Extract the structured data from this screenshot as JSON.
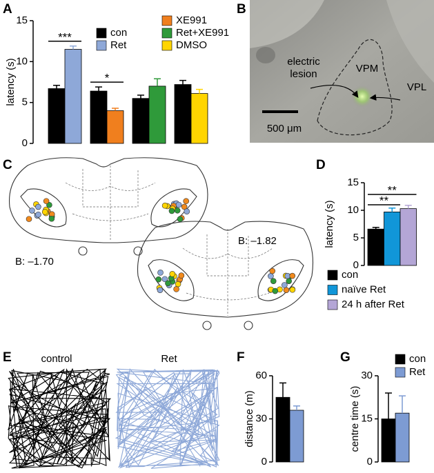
{
  "panel_labels": [
    "A",
    "B",
    "C",
    "D",
    "E",
    "F",
    "G"
  ],
  "image_b": {
    "lesion_label": [
      "electric",
      "lesion"
    ],
    "regions": [
      "VPM",
      "VPL"
    ],
    "scale_bar": "500 μm"
  },
  "atlas_c": {
    "sections": [
      "B: –1.70",
      "B: –1.82"
    ]
  },
  "tracks_e": {
    "titles": [
      "control",
      "Ret"
    ]
  },
  "chart_data": [
    {
      "type": "bar",
      "ylabel": "latency (s)",
      "ylim": [
        0,
        15
      ],
      "yticks": [
        0,
        5,
        10,
        15
      ],
      "categories": [
        null,
        null,
        null,
        null
      ],
      "series": [
        {
          "name": "con",
          "color": "#000000",
          "values": [
            6.7,
            6.4,
            5.5,
            7.2
          ],
          "errors": [
            0.4,
            0.5,
            0.4,
            0.5
          ]
        },
        {
          "name": "Ret",
          "color": "#8ea8d8",
          "values": [
            11.5,
            null,
            null,
            null
          ],
          "errors": [
            0.4,
            null,
            null,
            null
          ]
        },
        {
          "name": "XE991",
          "color": "#f07f1e",
          "values": [
            null,
            4.0,
            null,
            null
          ],
          "errors": [
            null,
            0.3,
            null,
            null
          ]
        },
        {
          "name": "Ret+XE991",
          "color": "#2f9a3a",
          "values": [
            null,
            null,
            7.0,
            null
          ],
          "errors": [
            null,
            null,
            0.9,
            null
          ]
        },
        {
          "name": "DMSO",
          "color": "#ffd500",
          "values": [
            null,
            null,
            null,
            6.1
          ],
          "errors": [
            null,
            null,
            null,
            0.5
          ]
        }
      ],
      "annotations": [
        "***",
        "*"
      ],
      "legend": true
    },
    {
      "type": "bar",
      "ylabel": "latency (s)",
      "ylim": [
        0,
        15
      ],
      "yticks": [
        0,
        5,
        10,
        15
      ],
      "categories": [
        null
      ],
      "series": [
        {
          "name": "con",
          "color": "#000000",
          "values": [
            6.6
          ],
          "errors": [
            0.3
          ]
        },
        {
          "name": "naïve Ret",
          "color": "#1196d8",
          "values": [
            9.7
          ],
          "errors": [
            0.7
          ]
        },
        {
          "name": "24 h after Ret",
          "color": "#b4a6d6",
          "values": [
            10.3
          ],
          "errors": [
            0.6
          ]
        }
      ],
      "annotations": [
        "**",
        "**"
      ],
      "legend": true
    },
    {
      "type": "bar",
      "ylabel": "distance (m)",
      "ylim": [
        0,
        60
      ],
      "yticks": [
        0,
        30,
        60
      ],
      "categories": [
        null
      ],
      "series": [
        {
          "name": "con",
          "color": "#000000",
          "values": [
            45
          ],
          "errors": [
            10
          ]
        },
        {
          "name": "Ret",
          "color": "#7d9bd3",
          "values": [
            36
          ],
          "errors": [
            3
          ]
        }
      ],
      "legend": false
    },
    {
      "type": "bar",
      "ylabel": "centre time (s)",
      "ylim": [
        0,
        30
      ],
      "yticks": [
        0,
        15,
        30
      ],
      "categories": [
        null
      ],
      "series": [
        {
          "name": "con",
          "color": "#000000",
          "values": [
            15
          ],
          "errors": [
            9
          ]
        },
        {
          "name": "Ret",
          "color": "#7d9bd3",
          "values": [
            17
          ],
          "errors": [
            6
          ]
        }
      ],
      "legend": true
    }
  ]
}
